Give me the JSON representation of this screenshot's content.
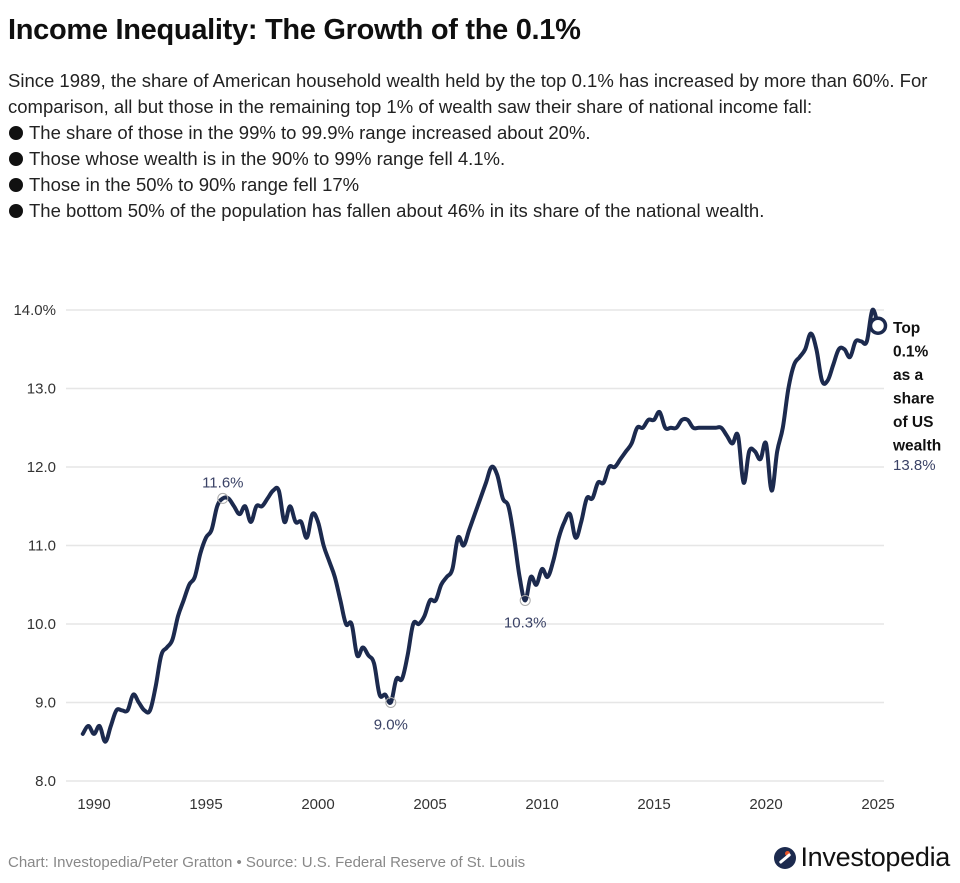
{
  "header": {
    "title": "Income Inequality: The Growth of the 0.1%",
    "intro": "Since 1989, the share of American household wealth held by the top 0.1% has increased by more than 60%. For comparison, all but those in the remaining top 1% of wealth saw their share of national income fall:",
    "bullets": [
      "The share of those in the 99% to 99.9% range increased about 20%.",
      "Those whose wealth is in the 90% to 99% range fell 4.1%.",
      "Those in the 50% to 90% range fell 17%",
      "The bottom 50% of the population has fallen about 46% in its share of the national wealth."
    ]
  },
  "footer": {
    "credit": "Chart: Investopedia/Peter Gratton • Source: U.S. Federal Reserve of St. Louis",
    "logo_text": "Investopedia",
    "logo_icon": "investopedia-logo-icon"
  },
  "colors": {
    "line": "#1c2a4e",
    "annotation_text": "#3a4266",
    "gridline": "#e6e6e6",
    "logo_dot": "#e8552a"
  },
  "chart_data": {
    "type": "line",
    "title": "Income Inequality: The Growth of the 0.1%",
    "xlabel": "",
    "ylabel": "",
    "xlim": [
      1989.25,
      2025.5
    ],
    "ylim": [
      8.0,
      14.0
    ],
    "grid": true,
    "x_ticks": [
      1990,
      1995,
      2000,
      2005,
      2010,
      2015,
      2020,
      2025
    ],
    "x_tick_labels": [
      "1990",
      "1995",
      "2000",
      "2005",
      "2010",
      "2015",
      "2020",
      "2025"
    ],
    "y_ticks": [
      8,
      9,
      10,
      11,
      12,
      13,
      14
    ],
    "y_tick_labels": [
      "8.0",
      "9.0",
      "10.0",
      "11.0",
      "12.0",
      "13.0",
      "14.0%"
    ],
    "series": [
      {
        "name": "Top 0.1% as a share of US wealth",
        "label_lines": [
          "Top",
          "0.1%",
          "as a",
          "share",
          "of US",
          "wealth"
        ],
        "last_value_label": "13.8%",
        "x": [
          1989.5,
          1989.75,
          1990.0,
          1990.25,
          1990.5,
          1990.75,
          1991.0,
          1991.25,
          1991.5,
          1991.75,
          1992.0,
          1992.25,
          1992.5,
          1992.75,
          1993.0,
          1993.25,
          1993.5,
          1993.75,
          1994.0,
          1994.25,
          1994.5,
          1994.75,
          1995.0,
          1995.25,
          1995.5,
          1995.75,
          1996.0,
          1996.25,
          1996.5,
          1996.75,
          1997.0,
          1997.25,
          1997.5,
          1997.75,
          1998.0,
          1998.25,
          1998.5,
          1998.75,
          1999.0,
          1999.25,
          1999.5,
          1999.75,
          2000.0,
          2000.25,
          2000.5,
          2000.75,
          2001.0,
          2001.25,
          2001.5,
          2001.75,
          2002.0,
          2002.25,
          2002.5,
          2002.75,
          2003.0,
          2003.25,
          2003.5,
          2003.75,
          2004.0,
          2004.25,
          2004.5,
          2004.75,
          2005.0,
          2005.25,
          2005.5,
          2005.75,
          2006.0,
          2006.25,
          2006.5,
          2006.75,
          2007.0,
          2007.25,
          2007.5,
          2007.75,
          2008.0,
          2008.25,
          2008.5,
          2008.75,
          2009.0,
          2009.25,
          2009.5,
          2009.75,
          2010.0,
          2010.25,
          2010.5,
          2010.75,
          2011.0,
          2011.25,
          2011.5,
          2011.75,
          2012.0,
          2012.25,
          2012.5,
          2012.75,
          2013.0,
          2013.25,
          2013.5,
          2013.75,
          2014.0,
          2014.25,
          2014.5,
          2014.75,
          2015.0,
          2015.25,
          2015.5,
          2015.75,
          2016.0,
          2016.25,
          2016.5,
          2016.75,
          2017.0,
          2017.25,
          2017.5,
          2017.75,
          2018.0,
          2018.25,
          2018.5,
          2018.75,
          2019.0,
          2019.25,
          2019.5,
          2019.75,
          2020.0,
          2020.25,
          2020.5,
          2020.75,
          2021.0,
          2021.25,
          2021.5,
          2021.75,
          2022.0,
          2022.25,
          2022.5,
          2022.75,
          2023.0,
          2023.25,
          2023.5,
          2023.75,
          2024.0,
          2024.25,
          2024.5,
          2024.75,
          2025.0
        ],
        "values": [
          8.6,
          8.7,
          8.6,
          8.7,
          8.5,
          8.7,
          8.9,
          8.9,
          8.9,
          9.1,
          9.0,
          8.9,
          8.9,
          9.2,
          9.6,
          9.7,
          9.8,
          10.1,
          10.3,
          10.5,
          10.6,
          10.9,
          11.1,
          11.2,
          11.5,
          11.6,
          11.6,
          11.5,
          11.4,
          11.5,
          11.3,
          11.5,
          11.5,
          11.6,
          11.7,
          11.7,
          11.3,
          11.5,
          11.3,
          11.3,
          11.1,
          11.4,
          11.3,
          11.0,
          10.8,
          10.6,
          10.3,
          10.0,
          10.0,
          9.6,
          9.7,
          9.6,
          9.5,
          9.1,
          9.1,
          9.0,
          9.3,
          9.3,
          9.6,
          10.0,
          10.0,
          10.1,
          10.3,
          10.3,
          10.5,
          10.6,
          10.7,
          11.1,
          11.0,
          11.2,
          11.4,
          11.6,
          11.8,
          12.0,
          11.9,
          11.6,
          11.5,
          11.1,
          10.6,
          10.3,
          10.6,
          10.5,
          10.7,
          10.6,
          10.8,
          11.1,
          11.3,
          11.4,
          11.1,
          11.3,
          11.6,
          11.6,
          11.8,
          11.8,
          12.0,
          12.0,
          12.1,
          12.2,
          12.3,
          12.5,
          12.5,
          12.6,
          12.6,
          12.7,
          12.5,
          12.5,
          12.5,
          12.6,
          12.6,
          12.5,
          12.5,
          12.5,
          12.5,
          12.5,
          12.5,
          12.4,
          12.3,
          12.4,
          11.8,
          12.2,
          12.2,
          12.1,
          12.3,
          11.7,
          12.2,
          12.5,
          13.0,
          13.3,
          13.4,
          13.5,
          13.7,
          13.5,
          13.1,
          13.1,
          13.3,
          13.5,
          13.5,
          13.4,
          13.6,
          13.6,
          13.6,
          14.0,
          13.8
        ]
      }
    ],
    "annotations": [
      {
        "x": 1995.75,
        "y": 11.6,
        "text": "11.6%",
        "position": "above"
      },
      {
        "x": 2003.25,
        "y": 9.0,
        "text": "9.0%",
        "position": "below"
      },
      {
        "x": 2009.25,
        "y": 10.3,
        "text": "10.3%",
        "position": "below"
      }
    ]
  }
}
